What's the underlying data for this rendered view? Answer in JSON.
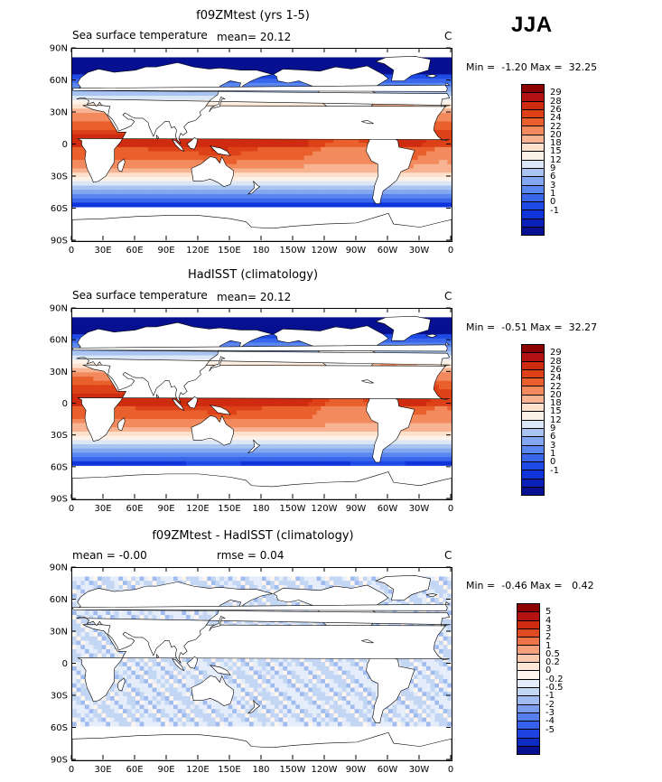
{
  "season": "JJA",
  "panels": [
    {
      "id": "model",
      "title": "f09ZMtest (yrs 1-5)",
      "left_label": "Sea surface temperature",
      "center_label": "mean=   20.12",
      "right_label": "C",
      "minmax": "Min =  -1.20 Max =  32.25",
      "field": "sst",
      "colorbar_colors": [
        "#8b0000",
        "#b31212",
        "#cf2b10",
        "#dd4118",
        "#e9602d",
        "#f38a5e",
        "#f8b492",
        "#fde1cc",
        "#fdf2e8",
        "#dbe7f7",
        "#a9c4f0",
        "#82a6f0",
        "#5a87ef",
        "#3a66ec",
        "#1e4ae6",
        "#0f34d9",
        "#0b20b8",
        "#061090"
      ],
      "colorbar_labels": [
        "29",
        "28",
        "26",
        "24",
        "22",
        "20",
        "18",
        "15",
        "12",
        "9",
        "6",
        "3",
        "1",
        "0",
        "-1"
      ]
    },
    {
      "id": "obs",
      "title": "HadISST (climatology)",
      "left_label": "Sea surface temperature",
      "center_label": "mean=   20.12",
      "right_label": "C",
      "minmax": "Min =  -0.51 Max =  32.27",
      "field": "sst",
      "colorbar_colors": [
        "#8b0000",
        "#b31212",
        "#cf2b10",
        "#dd4118",
        "#e9602d",
        "#f38a5e",
        "#f8b492",
        "#fde1cc",
        "#fdf2e8",
        "#dbe7f7",
        "#a9c4f0",
        "#82a6f0",
        "#5a87ef",
        "#3a66ec",
        "#1e4ae6",
        "#0f34d9",
        "#0b20b8",
        "#061090"
      ],
      "colorbar_labels": [
        "29",
        "28",
        "26",
        "24",
        "22",
        "20",
        "18",
        "15",
        "12",
        "9",
        "6",
        "3",
        "1",
        "0",
        "-1"
      ]
    },
    {
      "id": "diff",
      "title": "f09ZMtest - HadISST (climatology)",
      "left_label": "mean =   -0.00",
      "center_label": "rmse =    0.04",
      "right_label": "C",
      "minmax": "Min =  -0.46 Max =   0.42",
      "field": "diff",
      "colorbar_colors": [
        "#8b0000",
        "#b31212",
        "#cf2b10",
        "#e04a22",
        "#ef7447",
        "#f5a07a",
        "#fac9ad",
        "#fde7d8",
        "#fdf5ee",
        "#e4edf9",
        "#c3d6f3",
        "#9fbbf0",
        "#7b9def",
        "#567fed",
        "#3560eb",
        "#1c42e2",
        "#0e2cc4",
        "#061090"
      ],
      "colorbar_labels": [
        "5",
        "4",
        "3",
        "2",
        "1",
        "0.5",
        "0.2",
        "0",
        "-0.2",
        "-0.5",
        "-1",
        "-2",
        "-3",
        "-4",
        "-5"
      ]
    }
  ],
  "lat_ticks": [
    "90N",
    "60N",
    "30N",
    "0",
    "30S",
    "60S",
    "90S"
  ],
  "lon_ticks": [
    "0",
    "30E",
    "60E",
    "90E",
    "120E",
    "150E",
    "180",
    "150W",
    "120W",
    "90W",
    "60W",
    "30W",
    "0"
  ]
}
